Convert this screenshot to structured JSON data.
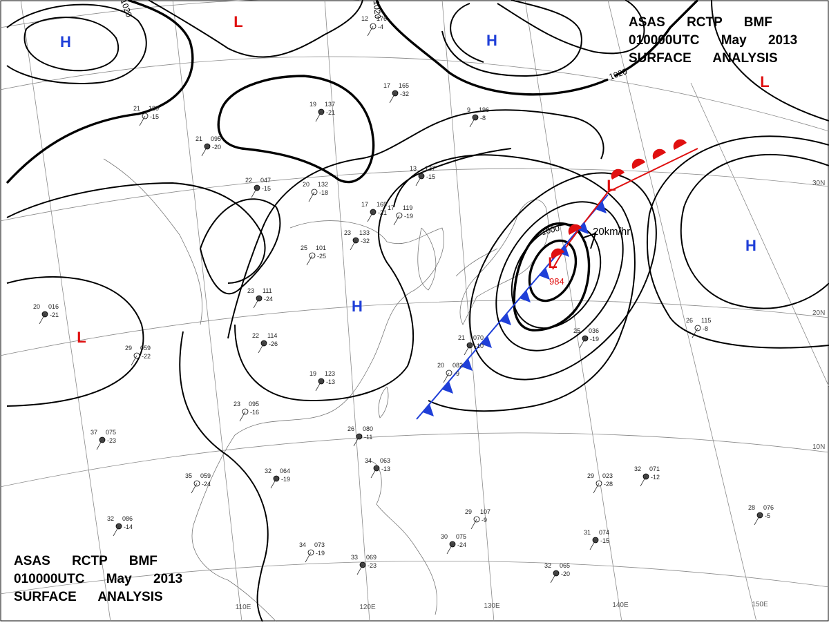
{
  "header_top": {
    "lines": [
      "ASAS RCTP BMF",
      "010000UTC May 2013",
      "SURFACE ANALYSIS"
    ]
  },
  "header_bottom": {
    "lines": [
      "ASAS RCTP BMF",
      "010000UTC May 2013",
      "SURFACE ANALYSIS"
    ]
  },
  "pressure_centers": [
    {
      "label": "H",
      "color": "#1f3fd8"
    },
    {
      "label": "L",
      "color": "#e01010"
    },
    {
      "label": "H",
      "color": "#1f3fd8"
    },
    {
      "label": "L",
      "color": "#e01010"
    },
    {
      "label": "L",
      "color": "#e01010"
    },
    {
      "label": "L",
      "color": "#e01010"
    },
    {
      "label": "H",
      "color": "#1f3fd8"
    },
    {
      "label": "H",
      "color": "#1f3fd8"
    },
    {
      "label": "L",
      "color": "#e01010"
    }
  ],
  "isobar_labels": [
    "1020",
    "1020",
    "1020",
    "1000"
  ],
  "low_center_pressure": "984",
  "motion": "20km/hr",
  "latitude_labels": [
    "30N",
    "20N",
    "10N"
  ],
  "longitude_labels": [
    "110E",
    "120E",
    "130E",
    "140E",
    "150E"
  ],
  "stations": [
    {
      "temp": "12",
      "pressure": "176",
      "dewpoint": "-4"
    },
    {
      "temp": "17",
      "pressure": "165",
      "dewpoint": "-32"
    },
    {
      "temp": "19",
      "pressure": "137",
      "dewpoint": "-21"
    },
    {
      "temp": "21",
      "pressure": "180",
      "dewpoint": "-15"
    },
    {
      "temp": "21",
      "pressure": "095",
      "dewpoint": "-20"
    },
    {
      "temp": "22",
      "pressure": "047",
      "dewpoint": "-15"
    },
    {
      "temp": "20",
      "pressure": "132",
      "dewpoint": "-18"
    },
    {
      "temp": "17",
      "pressure": "165",
      "dewpoint": "-21"
    },
    {
      "temp": "13",
      "pressure": "137",
      "dewpoint": "-15"
    },
    {
      "temp": "17",
      "pressure": "119",
      "dewpoint": "-19"
    },
    {
      "temp": "9",
      "pressure": "196",
      "dewpoint": "-8"
    },
    {
      "temp": "23",
      "pressure": "133",
      "dewpoint": "-32"
    },
    {
      "temp": "25",
      "pressure": "101",
      "dewpoint": "-25"
    },
    {
      "temp": "23",
      "pressure": "111",
      "dewpoint": "-24"
    },
    {
      "temp": "20",
      "pressure": "016",
      "dewpoint": "-21"
    },
    {
      "temp": "29",
      "pressure": "059",
      "dewpoint": "-22"
    },
    {
      "temp": "22",
      "pressure": "114",
      "dewpoint": "-26"
    },
    {
      "temp": "19",
      "pressure": "123",
      "dewpoint": "-13"
    },
    {
      "temp": "23",
      "pressure": "095",
      "dewpoint": "-16"
    },
    {
      "temp": "26",
      "pressure": "080",
      "dewpoint": "-11"
    },
    {
      "temp": "32",
      "pressure": "064",
      "dewpoint": "-19"
    },
    {
      "temp": "35",
      "pressure": "059",
      "dewpoint": "-24"
    },
    {
      "temp": "37",
      "pressure": "075",
      "dewpoint": "-23"
    },
    {
      "temp": "34",
      "pressure": "063",
      "dewpoint": "-13"
    },
    {
      "temp": "29",
      "pressure": "107",
      "dewpoint": "-9"
    },
    {
      "temp": "30",
      "pressure": "075",
      "dewpoint": "-24"
    },
    {
      "temp": "31",
      "pressure": "074",
      "dewpoint": "-15"
    },
    {
      "temp": "29",
      "pressure": "023",
      "dewpoint": "-28"
    },
    {
      "temp": "32",
      "pressure": "071",
      "dewpoint": "-12"
    },
    {
      "temp": "28",
      "pressure": "076",
      "dewpoint": "-5"
    },
    {
      "temp": "26",
      "pressure": "115",
      "dewpoint": "-8"
    },
    {
      "temp": "25",
      "pressure": "036",
      "dewpoint": "-19"
    },
    {
      "temp": "21",
      "pressure": "070",
      "dewpoint": "-10"
    },
    {
      "temp": "20",
      "pressure": "082",
      "dewpoint": "-9"
    },
    {
      "temp": "32",
      "pressure": "065",
      "dewpoint": "-20"
    },
    {
      "temp": "33",
      "pressure": "069",
      "dewpoint": "-23"
    },
    {
      "temp": "34",
      "pressure": "073",
      "dewpoint": "-19"
    },
    {
      "temp": "32",
      "pressure": "086",
      "dewpoint": "-14"
    }
  ]
}
